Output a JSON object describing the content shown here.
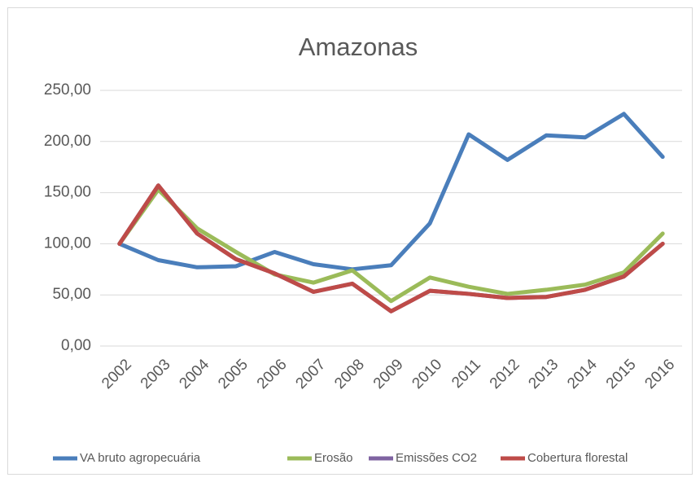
{
  "chart_data": {
    "type": "line",
    "title": "Amazonas",
    "categories": [
      "2002",
      "2003",
      "2004",
      "2005",
      "2006",
      "2007",
      "2008",
      "2009",
      "2010",
      "2011",
      "2012",
      "2013",
      "2014",
      "2015",
      "2016"
    ],
    "series": [
      {
        "name": "VA bruto agropecuária",
        "color": "#4a7ebb",
        "values": [
          100,
          84,
          77,
          78,
          92,
          80,
          75,
          79,
          120,
          207,
          182,
          206,
          204,
          227,
          185
        ]
      },
      {
        "name": "Erosão",
        "color": "#9bbb59",
        "values": [
          100,
          153,
          115,
          92,
          70,
          62,
          74,
          44,
          67,
          58,
          51,
          55,
          60,
          72,
          110
        ]
      },
      {
        "name": "Emissões CO2",
        "color": "#7f63a1",
        "values": [
          100,
          157,
          110,
          85,
          71,
          53,
          61,
          34,
          54,
          51,
          47,
          48,
          55,
          68,
          100
        ]
      },
      {
        "name": "Cobertura florestal",
        "color": "#be4b48",
        "values": [
          100,
          157,
          110,
          85,
          71,
          53,
          61,
          34,
          54,
          51,
          47,
          48,
          55,
          68,
          100
        ]
      }
    ],
    "ylim": [
      0,
      250
    ],
    "yticks": [
      {
        "value": 0,
        "label": "0,00"
      },
      {
        "value": 50,
        "label": "50,00"
      },
      {
        "value": 100,
        "label": "100,00"
      },
      {
        "value": 150,
        "label": "150,00"
      },
      {
        "value": 200,
        "label": "200,00"
      },
      {
        "value": 250,
        "label": "250,00"
      }
    ],
    "grid": true,
    "legend": "bottom"
  }
}
